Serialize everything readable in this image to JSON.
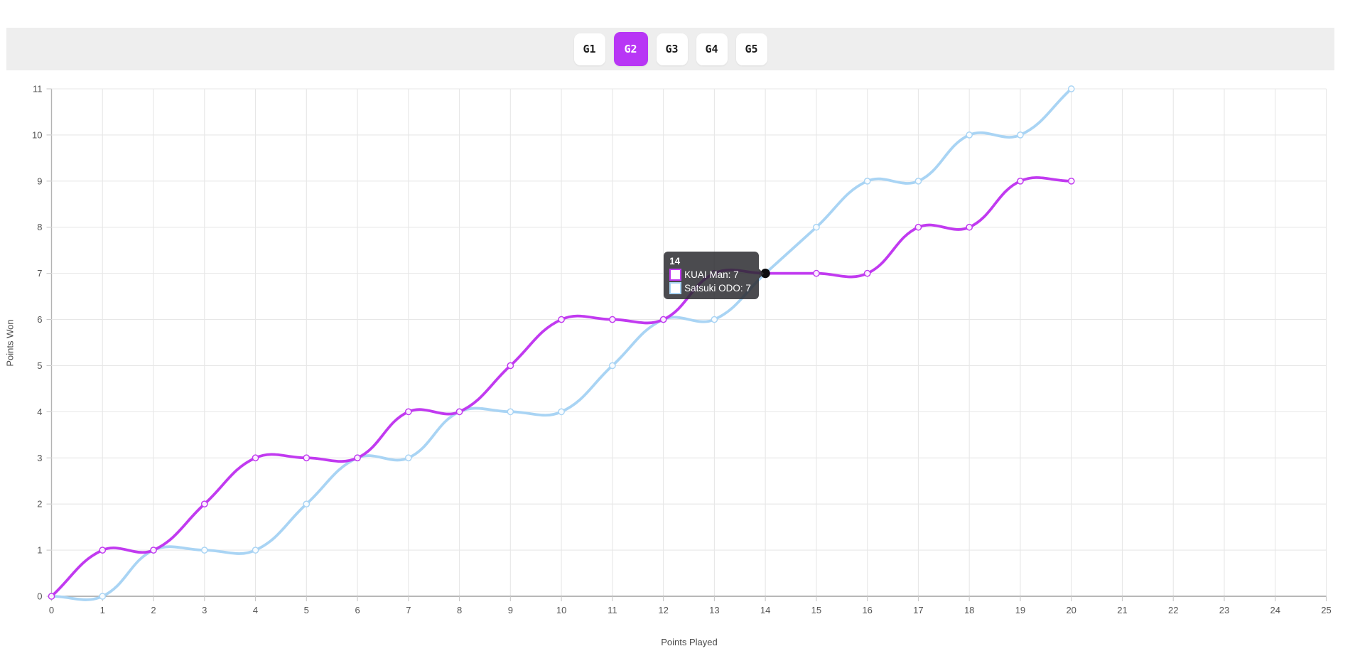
{
  "tab_bar": {
    "background": "#eeeeee",
    "active_color": "#b836f5",
    "tabs": [
      {
        "label": "G1",
        "active": false
      },
      {
        "label": "G2",
        "active": true
      },
      {
        "label": "G3",
        "active": false
      },
      {
        "label": "G4",
        "active": false
      },
      {
        "label": "G5",
        "active": false
      }
    ]
  },
  "chart_data": {
    "type": "line",
    "xlabel": "Points Played",
    "ylabel": "Points Won",
    "xlim": [
      0,
      25
    ],
    "ylim": [
      0,
      11
    ],
    "x_tick_step": 1,
    "y_tick_step": 1,
    "grid": true,
    "legend_position": "none",
    "curve": "spline-tension-0.4",
    "point_style": "open-circle",
    "x": [
      0,
      1,
      2,
      3,
      4,
      5,
      6,
      7,
      8,
      9,
      10,
      11,
      12,
      13,
      14,
      15,
      16,
      17,
      18,
      19,
      20
    ],
    "series": [
      {
        "name": "KUAI Man",
        "color": "#c13af0",
        "values": [
          0,
          1,
          1,
          2,
          3,
          3,
          3,
          4,
          4,
          5,
          6,
          6,
          6,
          7,
          7,
          7,
          7,
          8,
          8,
          9,
          9
        ]
      },
      {
        "name": "Satsuki ODO",
        "color": "#a9d4f4",
        "values": [
          0,
          0,
          1,
          1,
          1,
          2,
          3,
          3,
          4,
          4,
          4,
          5,
          6,
          6,
          7,
          8,
          9,
          9,
          10,
          10,
          11
        ]
      }
    ]
  },
  "tooltip": {
    "title": "14",
    "anchor_x": 14,
    "anchor_y": 7,
    "rows": [
      {
        "swatch_border": "#c13af0",
        "label": "KUAI Man: 7"
      },
      {
        "swatch_border": "#a9d4f4",
        "label": "Satsuki ODO: 7"
      }
    ]
  }
}
